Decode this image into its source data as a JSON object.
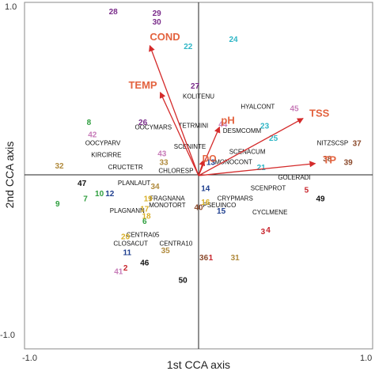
{
  "chart_data": {
    "type": "scatter",
    "title": "",
    "xlabel": "1st CCA axis",
    "ylabel": "2nd CCA axis",
    "xlim": [
      -1.0,
      1.0
    ],
    "ylim": [
      -1.0,
      1.0
    ],
    "x_ticks": [
      "-1.0",
      "1.0"
    ],
    "y_ticks": [
      "1.0",
      "-1.0"
    ],
    "grid": false,
    "arrow_color": "#d42a2a",
    "env_label_color": "#e3633f",
    "environmental_vectors": [
      {
        "name": "COND",
        "x": -0.28,
        "y": 0.75
      },
      {
        "name": "TEMP",
        "x": -0.22,
        "y": 0.48
      },
      {
        "name": "pH",
        "x": 0.12,
        "y": 0.28
      },
      {
        "name": "DO",
        "x": 0.03,
        "y": 0.09
      },
      {
        "name": "TSS",
        "x": 0.6,
        "y": 0.33
      },
      {
        "name": "TP",
        "x": 0.67,
        "y": 0.07
      }
    ],
    "sites": [
      {
        "label": "1",
        "x": 0.07,
        "y": -0.47,
        "color": "#c8242c"
      },
      {
        "label": "2",
        "x": -0.42,
        "y": -0.53,
        "color": "#c8242c"
      },
      {
        "label": "3",
        "x": 0.37,
        "y": -0.32,
        "color": "#c8242c"
      },
      {
        "label": "4",
        "x": 0.4,
        "y": -0.31,
        "color": "#c8242c"
      },
      {
        "label": "5",
        "x": 0.62,
        "y": -0.08,
        "color": "#c8242c"
      },
      {
        "label": "6",
        "x": -0.31,
        "y": -0.26,
        "color": "#2e9e3e"
      },
      {
        "label": "7",
        "x": -0.65,
        "y": -0.13,
        "color": "#2e9e3e"
      },
      {
        "name_note": "",
        "label": "8",
        "x": -0.63,
        "y": 0.31,
        "color": "#2e9e3e"
      },
      {
        "label": "9",
        "x": -0.81,
        "y": -0.16,
        "color": "#2e9e3e"
      },
      {
        "label": "10",
        "x": -0.57,
        "y": -0.1,
        "color": "#2e9e3e"
      },
      {
        "label": "11",
        "x": -0.41,
        "y": -0.44,
        "color": "#1f3f8f"
      },
      {
        "label": "12",
        "x": -0.51,
        "y": -0.1,
        "color": "#1f3f8f"
      },
      {
        "label": "13",
        "x": 0.07,
        "y": 0.08,
        "color": "#1f3f8f"
      },
      {
        "label": "14",
        "x": 0.04,
        "y": -0.07,
        "color": "#1f3f8f"
      },
      {
        "label": "15",
        "x": 0.13,
        "y": -0.2,
        "color": "#1f3f8f"
      },
      {
        "label": "16",
        "x": 0.04,
        "y": -0.15,
        "color": "#d9b02a"
      },
      {
        "label": "17",
        "x": -0.31,
        "y": -0.19,
        "color": "#d9b02a"
      },
      {
        "label": "18",
        "x": -0.3,
        "y": -0.23,
        "color": "#d9b02a"
      },
      {
        "label": "19",
        "x": -0.29,
        "y": -0.13,
        "color": "#d9b02a"
      },
      {
        "label": "20",
        "x": -0.42,
        "y": -0.35,
        "color": "#d9b02a"
      },
      {
        "label": "21",
        "x": 0.36,
        "y": 0.05,
        "color": "#2fb6c6"
      },
      {
        "label": "22",
        "x": -0.06,
        "y": 0.75,
        "color": "#2fb6c6"
      },
      {
        "label": "23",
        "x": 0.38,
        "y": 0.29,
        "color": "#2fb6c6"
      },
      {
        "label": "24",
        "x": 0.2,
        "y": 0.79,
        "color": "#2fb6c6"
      },
      {
        "label": "25",
        "x": 0.43,
        "y": 0.22,
        "color": "#2fb6c6"
      },
      {
        "label": "26",
        "x": -0.32,
        "y": 0.31,
        "color": "#7a2c8a"
      },
      {
        "label": "27",
        "x": -0.02,
        "y": 0.52,
        "color": "#7a2c8a"
      },
      {
        "label": "28",
        "x": -0.49,
        "y": 0.95,
        "color": "#7a2c8a"
      },
      {
        "label": "29",
        "x": -0.24,
        "y": 0.94,
        "color": "#7a2c8a"
      },
      {
        "label": "30",
        "x": -0.24,
        "y": 0.89,
        "color": "#7a2c8a"
      },
      {
        "label": "31",
        "x": 0.21,
        "y": -0.47,
        "color": "#b08a3c"
      },
      {
        "label": "32",
        "x": -0.8,
        "y": 0.06,
        "color": "#b08a3c"
      },
      {
        "label": "33",
        "x": -0.2,
        "y": 0.08,
        "color": "#b08a3c"
      },
      {
        "label": "34",
        "x": -0.25,
        "y": -0.06,
        "color": "#b08a3c"
      },
      {
        "label": "35",
        "x": -0.19,
        "y": -0.43,
        "color": "#b08a3c"
      },
      {
        "label": "36",
        "x": 0.03,
        "y": -0.47,
        "color": "#8b4a2c"
      },
      {
        "label": "37",
        "x": 0.91,
        "y": 0.19,
        "color": "#8b4a2c"
      },
      {
        "label": "38",
        "x": 0.74,
        "y": 0.1,
        "color": "#8b4a2c"
      },
      {
        "label": "39",
        "x": 0.86,
        "y": 0.08,
        "color": "#8b4a2c"
      },
      {
        "label": "40",
        "x": 0.0,
        "y": -0.18,
        "color": "#8b4a2c"
      },
      {
        "label": "41",
        "x": -0.46,
        "y": -0.55,
        "color": "#c77bb8"
      },
      {
        "label": "42",
        "x": -0.61,
        "y": 0.24,
        "color": "#c77bb8"
      },
      {
        "label": "43",
        "x": -0.21,
        "y": 0.13,
        "color": "#c77bb8"
      },
      {
        "label": "44",
        "x": 0.14,
        "y": 0.3,
        "color": "#c77bb8"
      },
      {
        "label": "45",
        "x": 0.55,
        "y": 0.39,
        "color": "#c77bb8"
      },
      {
        "label": "46",
        "x": -0.31,
        "y": -0.5,
        "color": "#111111"
      },
      {
        "label": "47",
        "x": -0.67,
        "y": -0.04,
        "color": "#111111"
      },
      {
        "label": "49",
        "x": 0.7,
        "y": -0.13,
        "color": "#111111"
      },
      {
        "label": "50",
        "x": -0.09,
        "y": -0.6,
        "color": "#111111"
      }
    ],
    "species": [
      {
        "label": "KOLITENU",
        "x": 0.0,
        "y": 0.46
      },
      {
        "label": "HYALCONT",
        "x": 0.34,
        "y": 0.4
      },
      {
        "label": "OOCYMARS",
        "x": -0.26,
        "y": 0.28
      },
      {
        "label": "OOCYPARV",
        "x": -0.55,
        "y": 0.19
      },
      {
        "label": "TETRMINI",
        "x": -0.03,
        "y": 0.29
      },
      {
        "label": "DESMCOMM",
        "x": 0.25,
        "y": 0.26
      },
      {
        "label": "NITZSCSP",
        "x": 0.77,
        "y": 0.19
      },
      {
        "label": "SCENINTE",
        "x": -0.05,
        "y": 0.17
      },
      {
        "label": "SCENACUM",
        "x": 0.28,
        "y": 0.14
      },
      {
        "label": "KIRCIRRE",
        "x": -0.53,
        "y": 0.12
      },
      {
        "label": "MONOCONT",
        "x": 0.2,
        "y": 0.08
      },
      {
        "label": "CRUCTETR",
        "x": -0.42,
        "y": 0.05
      },
      {
        "label": "CHLORESP",
        "x": -0.13,
        "y": 0.03
      },
      {
        "label": "GOLERADI",
        "x": 0.55,
        "y": -0.01
      },
      {
        "label": "PLANLAUT",
        "x": -0.37,
        "y": -0.04
      },
      {
        "label": "SCENPROT",
        "x": 0.4,
        "y": -0.07
      },
      {
        "label": "FRAGNANA",
        "x": -0.18,
        "y": -0.13
      },
      {
        "label": "CRYPMARS",
        "x": 0.21,
        "y": -0.13
      },
      {
        "label": "MONOTORT",
        "x": -0.18,
        "y": -0.17
      },
      {
        "label": "PSEUINCO",
        "x": 0.12,
        "y": -0.17
      },
      {
        "label": "PLAGNANN",
        "x": -0.41,
        "y": -0.2
      },
      {
        "label": "CYCLMENE",
        "x": 0.41,
        "y": -0.21
      },
      {
        "label": "CENTRA05",
        "x": -0.32,
        "y": -0.34
      },
      {
        "label": "CLOSACUT",
        "x": -0.39,
        "y": -0.39
      },
      {
        "label": "CENTRA10",
        "x": -0.13,
        "y": -0.39
      }
    ]
  }
}
